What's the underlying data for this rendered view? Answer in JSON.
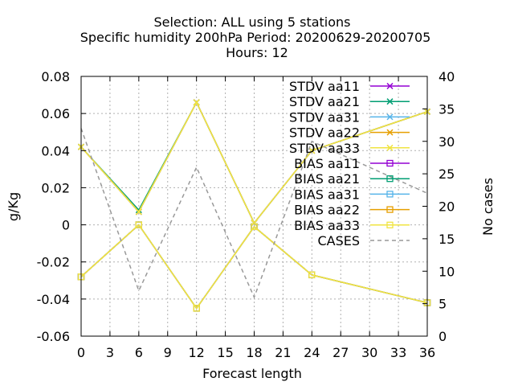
{
  "chart_data": {
    "type": "line",
    "title_lines": [
      "Selection: ALL using     5 stations",
      "Specific humidity 200hPa   Period: 20200629-20200705",
      "Hours:  12"
    ],
    "xlabel": "Forecast length",
    "ylabel": "g/Kg",
    "y2label": "No cases",
    "x_ticks": [
      "0",
      "3",
      "6",
      "9",
      "12",
      "15",
      "18",
      "21",
      "24",
      "27",
      "30",
      "33",
      "36"
    ],
    "y_ticks": [
      "0.08",
      "0.06",
      "0.04",
      "0.02",
      "0",
      "-0.02",
      "-0.04",
      "-0.06"
    ],
    "y2_ticks": [
      "40",
      "35",
      "30",
      "25",
      "20",
      "15",
      "10",
      "5",
      "0"
    ],
    "xlim": [
      0,
      36
    ],
    "ylim": [
      -0.06,
      0.08
    ],
    "y2lim": [
      0,
      40
    ],
    "grid": true,
    "legend_position": "top-right",
    "x": [
      0,
      6,
      12,
      18,
      24,
      36
    ],
    "series": [
      {
        "name": "STDV aa11",
        "axis": "y1",
        "style": "solid",
        "marker": "x",
        "color": "#9400d3",
        "values": [
          0.042,
          0.007,
          0.066,
          0.001,
          0.04,
          0.061
        ]
      },
      {
        "name": "STDV aa21",
        "axis": "y1",
        "style": "solid",
        "marker": "x",
        "color": "#009e73",
        "values": [
          0.042,
          0.008,
          0.066,
          0.001,
          0.04,
          0.061
        ]
      },
      {
        "name": "STDV aa31",
        "axis": "y1",
        "style": "solid",
        "marker": "x",
        "color": "#56b4e9",
        "values": [
          0.042,
          0.007,
          0.066,
          0.001,
          0.04,
          0.061
        ]
      },
      {
        "name": "STDV aa22",
        "axis": "y1",
        "style": "solid",
        "marker": "x",
        "color": "#e69f00",
        "values": [
          0.042,
          0.007,
          0.066,
          0.001,
          0.04,
          0.061
        ]
      },
      {
        "name": "STDV aa33",
        "axis": "y1",
        "style": "solid",
        "marker": "x",
        "color": "#f0e442",
        "values": [
          0.042,
          0.007,
          0.066,
          0.001,
          0.04,
          0.061
        ]
      },
      {
        "name": "BIAS aa11",
        "axis": "y1",
        "style": "solid",
        "marker": "sq",
        "color": "#9400d3",
        "values": [
          -0.028,
          0.0,
          -0.045,
          -0.001,
          -0.027,
          -0.042
        ]
      },
      {
        "name": "BIAS aa21",
        "axis": "y1",
        "style": "solid",
        "marker": "sq",
        "color": "#009e73",
        "values": [
          -0.028,
          0.0,
          -0.045,
          -0.001,
          -0.027,
          -0.042
        ]
      },
      {
        "name": "BIAS aa31",
        "axis": "y1",
        "style": "solid",
        "marker": "sq",
        "color": "#56b4e9",
        "values": [
          -0.028,
          0.0,
          -0.045,
          -0.001,
          -0.027,
          -0.042
        ]
      },
      {
        "name": "BIAS aa22",
        "axis": "y1",
        "style": "solid",
        "marker": "sq",
        "color": "#e69f00",
        "values": [
          -0.028,
          0.0,
          -0.045,
          -0.001,
          -0.027,
          -0.042
        ]
      },
      {
        "name": "BIAS aa33",
        "axis": "y1",
        "style": "solid",
        "marker": "sq",
        "color": "#f0e442",
        "values": [
          -0.028,
          0.0,
          -0.045,
          -0.001,
          -0.027,
          -0.042
        ]
      },
      {
        "name": "CASES",
        "axis": "y2",
        "style": "dashed",
        "marker": "none",
        "color": "#999999",
        "values": [
          32,
          7,
          26,
          6,
          30,
          22
        ]
      }
    ]
  }
}
